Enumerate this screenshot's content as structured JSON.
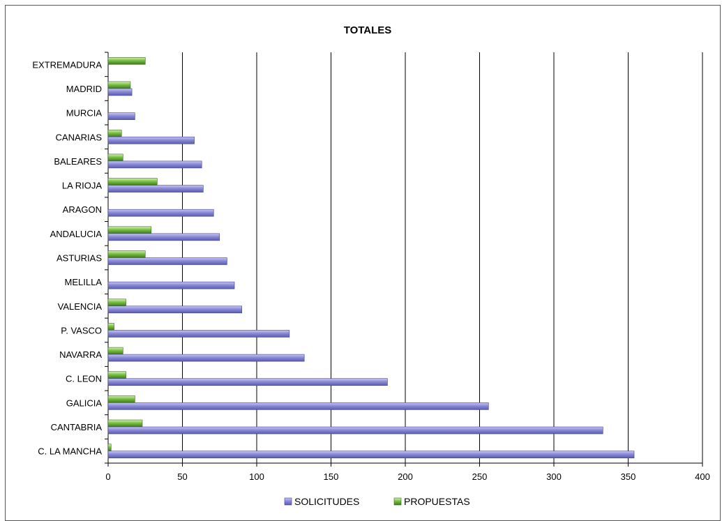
{
  "chart_data": {
    "type": "bar",
    "orientation": "horizontal",
    "title": "TOTALES",
    "xlabel": "",
    "ylabel": "",
    "xlim": [
      0,
      400
    ],
    "xticks": [
      0,
      50,
      100,
      150,
      200,
      250,
      300,
      350,
      400
    ],
    "grid": "vertical",
    "legend_position": "bottom",
    "categories": [
      "EXTREMADURA",
      "MADRID",
      "MURCIA",
      "CANARIAS",
      "BALEARES",
      "LA RIOJA",
      "ARAGON",
      "ANDALUCIA",
      "ASTURIAS",
      "MELILLA",
      "VALENCIA",
      "P. VASCO",
      "NAVARRA",
      "C. LEON",
      "GALICIA",
      "CANTABRIA",
      "C. LA MANCHA"
    ],
    "series": [
      {
        "name": "SOLICITUDES",
        "color": "#9999ff",
        "values": [
          0,
          16,
          18,
          58,
          63,
          64,
          71,
          75,
          80,
          85,
          90,
          122,
          132,
          188,
          256,
          333,
          354
        ]
      },
      {
        "name": "PROPUESTAS",
        "color": "#66aa33",
        "values": [
          25,
          15,
          0,
          9,
          10,
          33,
          0,
          29,
          25,
          0,
          12,
          4,
          10,
          12,
          18,
          23,
          2
        ]
      }
    ]
  }
}
